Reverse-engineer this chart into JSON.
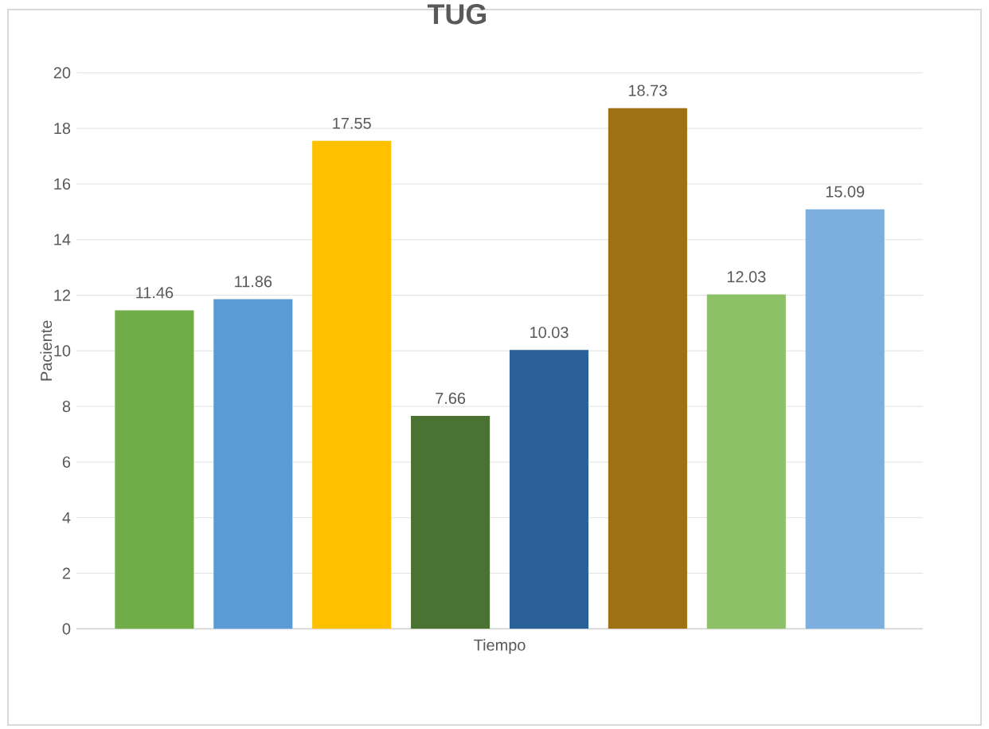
{
  "chart_data": {
    "type": "bar",
    "title": "TUG",
    "xlabel": "Tiempo",
    "ylabel": "Paciente",
    "categories": [
      null,
      null,
      null,
      null,
      null,
      null,
      null,
      null
    ],
    "values": [
      11.46,
      11.86,
      17.55,
      7.66,
      10.03,
      18.73,
      12.03,
      15.09
    ],
    "colors": [
      "#70ad47",
      "#5b9bd5",
      "#ffc000",
      "#4a7232",
      "#2a6199",
      "#9e7212",
      "#8cc168",
      "#7cafdd"
    ],
    "ylim": [
      0,
      20
    ],
    "yticks": [
      0,
      2,
      4,
      6,
      8,
      10,
      12,
      14,
      16,
      18,
      20
    ],
    "grid": "y",
    "data_labels": true
  }
}
